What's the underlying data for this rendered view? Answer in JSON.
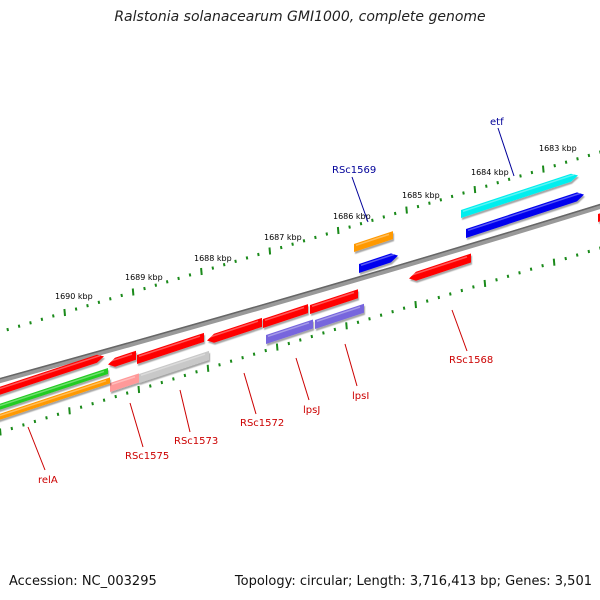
{
  "title": "Ralstonia solanacearum GMI1000, complete genome",
  "footer": {
    "accession": "Accession: NC_003295",
    "topology": "Topology: circular; Length: 3,716,413 bp; Genes: 3,501"
  },
  "colors": {
    "backbone": "#888888",
    "ticks": "#1a8a1a",
    "red": "#ff0000",
    "pink": "#ff9999",
    "gray": "#c8c8c8",
    "purple": "#7766dd",
    "orange": "#ff9900",
    "blue": "#0000ee",
    "cyan": "#00eeee",
    "green": "#22cc22",
    "labelRed": "#cc0000",
    "labelBlue": "#000099"
  },
  "kbp_labels": [
    "1690 kbp",
    "1689 kbp",
    "1688 kbp",
    "1687 kbp",
    "1686 kbp",
    "1685 kbp",
    "1684 kbp",
    "1683 kbp"
  ],
  "gene_labels": {
    "relA": "relA",
    "RSc1575": "RSc1575",
    "RSc1573": "RSc1573",
    "RSc1572": "RSc1572",
    "lpsJ": "lpsJ",
    "lpsI": "lpsI",
    "RSc1568": "RSc1568",
    "RSc1569": "RSc1569",
    "etf": "etf"
  }
}
